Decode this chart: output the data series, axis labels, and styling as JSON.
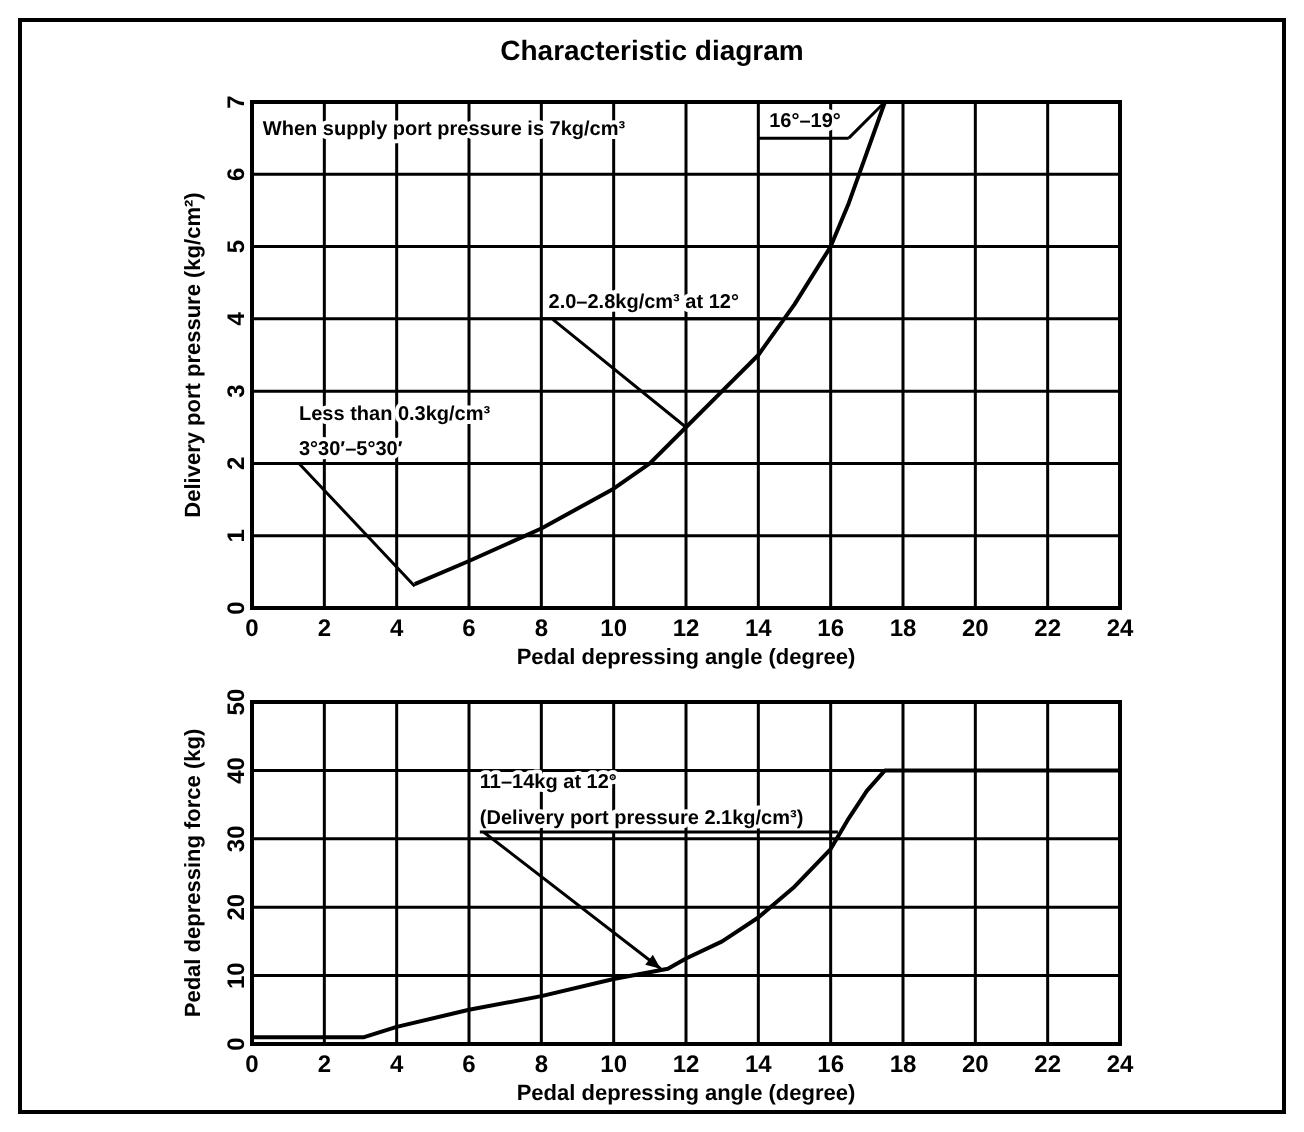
{
  "chart_data": [
    {
      "type": "line",
      "title": "Characteristic diagram",
      "xlabel": "Pedal depressing angle (degree)",
      "ylabel": "Delivery port pressure (kg/cm²)",
      "x": [
        4.5,
        6,
        8,
        10,
        11,
        12,
        13,
        14,
        15,
        16,
        16.5,
        17,
        17.5,
        24
      ],
      "series": [
        {
          "color": "#000000",
          "values": [
            0.33,
            0.65,
            1.1,
            1.65,
            2.0,
            2.5,
            3.0,
            3.5,
            4.2,
            5.0,
            5.6,
            6.3,
            7,
            7
          ]
        }
      ],
      "xlim": [
        0,
        24
      ],
      "xticks": [
        0,
        2,
        4,
        6,
        8,
        10,
        12,
        14,
        16,
        18,
        20,
        22,
        24
      ],
      "ylim": [
        0,
        7
      ],
      "yticks": [
        0,
        1,
        2,
        3,
        4,
        5,
        6,
        7
      ],
      "grid": true,
      "marker": "none",
      "line_style": "solid",
      "annotations": [
        "When supply port pressure is 7kg/cm³",
        {
          "text": "16°–19°",
          "x": 17.5,
          "y": 7
        },
        {
          "text": "2.0–2.8kg/cm³ at 12°",
          "x": 12,
          "y": 2.5
        },
        {
          "text": "Less than 0.3kg/cm³\n3°30′–5°30′",
          "x": 4.5,
          "y": 0.3
        }
      ]
    },
    {
      "type": "line",
      "xlabel": "Pedal depressing angle (degree)",
      "ylabel": "Pedal depressing force (kg)",
      "x": [
        0,
        3.1,
        4,
        6,
        8,
        10,
        11.5,
        12,
        13,
        14,
        15,
        16,
        16.5,
        17,
        17.5,
        24
      ],
      "series": [
        {
          "color": "#000000",
          "values": [
            1,
            1,
            2.5,
            5,
            7,
            9.5,
            11,
            12.5,
            15,
            18.5,
            23,
            28.5,
            33,
            37,
            40,
            40
          ]
        }
      ],
      "xlim": [
        0,
        24
      ],
      "xticks": [
        0,
        2,
        4,
        6,
        8,
        10,
        12,
        14,
        16,
        18,
        20,
        22,
        24
      ],
      "ylim": [
        0,
        50
      ],
      "yticks": [
        0,
        10,
        20,
        30,
        40,
        50
      ],
      "grid": true,
      "marker": "none",
      "line_style": "solid",
      "annotations": [
        {
          "text": "11–14kg at 12°\n(Delivery port pressure 2.1kg/cm³)",
          "x": 11.3,
          "y": 11
        }
      ]
    }
  ]
}
